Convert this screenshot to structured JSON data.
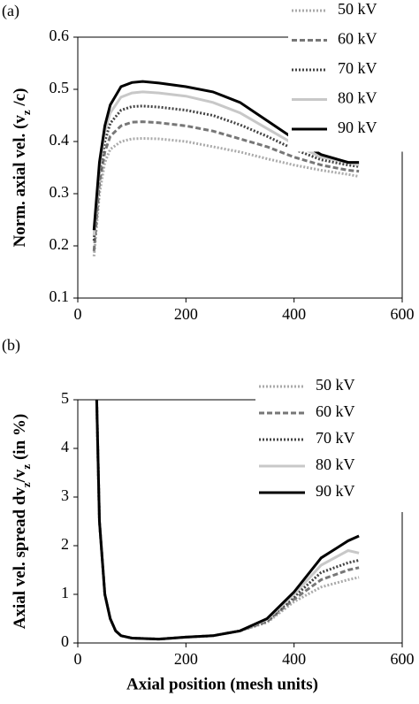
{
  "chart_data": [
    {
      "type": "line",
      "panel_label": "(a)",
      "y_label": [
        "Norm. axial vel. (v",
        "z",
        " /c)"
      ],
      "xlim": [
        0,
        600
      ],
      "xticks": [
        0,
        200,
        400,
        600
      ],
      "ylim": [
        0.1,
        0.6
      ],
      "yticks": [
        0.1,
        0.2,
        0.3,
        0.4,
        0.5,
        0.6
      ],
      "legend": "top right",
      "x": [
        30,
        40,
        50,
        60,
        80,
        100,
        120,
        150,
        200,
        250,
        300,
        350,
        400,
        450,
        500,
        520
      ],
      "series": [
        {
          "name": "50 kV",
          "color": "#aaaaaa",
          "style": "dotted",
          "values": [
            0.18,
            0.3,
            0.36,
            0.385,
            0.4,
            0.405,
            0.406,
            0.405,
            0.4,
            0.39,
            0.38,
            0.367,
            0.355,
            0.345,
            0.337,
            0.333
          ]
        },
        {
          "name": "60 kV",
          "color": "#777777",
          "style": "dashed",
          "values": [
            0.19,
            0.32,
            0.38,
            0.41,
            0.43,
            0.437,
            0.438,
            0.436,
            0.43,
            0.42,
            0.405,
            0.39,
            0.37,
            0.355,
            0.345,
            0.343
          ]
        },
        {
          "name": "70 kV",
          "color": "#444444",
          "style": "dotted",
          "values": [
            0.21,
            0.34,
            0.4,
            0.435,
            0.46,
            0.467,
            0.468,
            0.466,
            0.46,
            0.45,
            0.432,
            0.41,
            0.385,
            0.365,
            0.355,
            0.352
          ]
        },
        {
          "name": "80 kV",
          "color": "#c8c8c8",
          "style": "solid",
          "values": [
            0.22,
            0.35,
            0.42,
            0.455,
            0.485,
            0.493,
            0.495,
            0.493,
            0.487,
            0.475,
            0.455,
            0.425,
            0.395,
            0.37,
            0.36,
            0.355
          ]
        },
        {
          "name": "90 kV",
          "color": "#000000",
          "style": "solid",
          "values": [
            0.23,
            0.36,
            0.43,
            0.47,
            0.505,
            0.513,
            0.515,
            0.512,
            0.505,
            0.495,
            0.475,
            0.44,
            0.405,
            0.375,
            0.36,
            0.36
          ]
        }
      ]
    },
    {
      "type": "line",
      "panel_label": "(b)",
      "y_label": [
        "Axial vel. spread dv",
        "z",
        "/v",
        "z",
        " (in %)"
      ],
      "x_label": "Axial position (mesh units)",
      "xlim": [
        0,
        600
      ],
      "xticks": [
        0,
        200,
        400,
        600
      ],
      "ylim": [
        0,
        5
      ],
      "yticks": [
        0,
        1,
        2,
        3,
        4,
        5
      ],
      "legend": "top right",
      "x": [
        35,
        40,
        50,
        60,
        70,
        80,
        100,
        150,
        200,
        250,
        300,
        350,
        400,
        450,
        500,
        520
      ],
      "series": [
        {
          "name": "50 kV",
          "color": "#aaaaaa",
          "style": "dotted",
          "values": [
            5.0,
            2.5,
            1.0,
            0.5,
            0.25,
            0.15,
            0.1,
            0.08,
            0.12,
            0.15,
            0.25,
            0.42,
            0.85,
            1.15,
            1.3,
            1.35
          ]
        },
        {
          "name": "60 kV",
          "color": "#777777",
          "style": "dashed",
          "values": [
            5.0,
            2.5,
            1.0,
            0.5,
            0.25,
            0.15,
            0.1,
            0.08,
            0.12,
            0.15,
            0.25,
            0.44,
            0.9,
            1.3,
            1.5,
            1.55
          ]
        },
        {
          "name": "70 kV",
          "color": "#444444",
          "style": "dotted",
          "values": [
            5.0,
            2.5,
            1.0,
            0.5,
            0.25,
            0.15,
            0.1,
            0.08,
            0.12,
            0.15,
            0.25,
            0.46,
            0.95,
            1.45,
            1.65,
            1.7
          ]
        },
        {
          "name": "80 kV",
          "color": "#c8c8c8",
          "style": "solid",
          "values": [
            5.0,
            2.5,
            1.0,
            0.5,
            0.25,
            0.15,
            0.1,
            0.08,
            0.12,
            0.15,
            0.25,
            0.48,
            1.0,
            1.6,
            1.9,
            1.85
          ]
        },
        {
          "name": "90 kV",
          "color": "#000000",
          "style": "solid",
          "values": [
            5.0,
            2.5,
            1.0,
            0.5,
            0.25,
            0.15,
            0.1,
            0.08,
            0.12,
            0.15,
            0.25,
            0.5,
            1.05,
            1.75,
            2.1,
            2.2
          ]
        }
      ]
    }
  ]
}
